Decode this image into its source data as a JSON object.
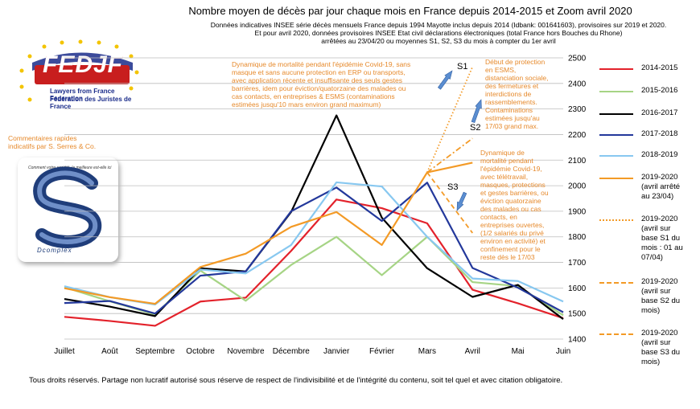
{
  "header": {
    "title": "Nombre moyen de décès par jour chaque mois en France depuis 2014-2015 et Zoom avril 2020",
    "subtitle": "Données indicatives INSEE série décès mensuels France depuis 1994 Mayotte inclus depuis 2014 (Idbank: 001641603), provisoires sur 2019 et 2020.\nEt pour avril 2020,  données provisoires INSEE Etat civil déclarations électroniques (total France hors Bouches du Rhone)\narrêtées au 23/04/20 ou moyennes S1, S2, S3 du mois à compter du 1er avril"
  },
  "logo": {
    "name": "FEDJF",
    "line1": "Lawyers from France Federation",
    "line2": "Fédération des Juristes de France",
    "brand_color": "#c81e1e",
    "star_color": "#f3c400"
  },
  "comment_left": "Commentaires rapides\nindicatifs par S. Serres & Co.",
  "dcomplex": {
    "label": "Dcomplex",
    "tagline": "Comment votre société, la meilleure est-elle ici"
  },
  "notes": {
    "n1": "Dynamique de mortalité pendant l'épidémie Covid-19, sans\nmasque et sans aucune protection en ERP ou transports,\navec application récente et insuffisante des seuls gestes\nbarrières, idem pour éviction/quatorzaine des malades ou\ncas contacts, en entreprises & ESMS (contaminations\nestimées jusqu'10 mars environ grand maximum)",
    "n2": "Début de protection\nen ESMS,\ndistanciation sociale,\ndes fermetures et\ninterdictions de\nrassemblements.\nContaminations\nestimées jusqu'au\n17/03 grand max.",
    "n3": "Dynamique de\nmortalité pendant\nl'épidémie Covid-19,\navec télétravail,\nmasques, protections\net gestes barrières, ou\néviction quatorzaine\ndes malades ou cas\ncontacts, en\nentreprises ouvertes,\n(1/2 salariés du privé\nenviron en activité) et\nconfinement pour le\nreste dès le 17/03",
    "s1": "S1",
    "s2": "S2",
    "s3": "S3"
  },
  "footer": "Tous droits réservés. Partage non lucratif autorisé sous réserve de respect de l'indivisibilité et de l'intégrité du contenu, soit tel quel et avec citation obligatoire.",
  "chart_data": {
    "type": "line",
    "categories": [
      "Juillet",
      "Août",
      "Septembre",
      "Octobre",
      "Novembre",
      "Décembre",
      "Janvier",
      "Février",
      "Mars",
      "Avril",
      "Mai",
      "Juin"
    ],
    "ylim": [
      1400,
      2500
    ],
    "yticks": [
      1400,
      1500,
      1600,
      1700,
      1800,
      1900,
      2000,
      2100,
      2200,
      2300,
      2400,
      2500
    ],
    "y_axis_side": "right",
    "grid": true,
    "legend_position": "right",
    "series": [
      {
        "name": "2014-2015",
        "color": "#e3222b",
        "style": "solid",
        "values": [
          1487,
          1471,
          1452,
          1547,
          1562,
          1745,
          1946,
          1912,
          1853,
          1593,
          1540,
          1482
        ]
      },
      {
        "name": "2015-2016",
        "color": "#a6d485",
        "style": "solid",
        "values": [
          1603,
          1548,
          1496,
          1668,
          1550,
          1690,
          1800,
          1650,
          1800,
          1623,
          1607,
          1493
        ]
      },
      {
        "name": "2016-2017",
        "color": "#000000",
        "style": "solid",
        "values": [
          1557,
          1527,
          1490,
          1677,
          1665,
          1897,
          2275,
          1875,
          1677,
          1565,
          1612,
          1478
        ]
      },
      {
        "name": "2017-2018",
        "color": "#23389b",
        "style": "solid",
        "values": [
          1541,
          1549,
          1500,
          1648,
          1665,
          1900,
          1993,
          1862,
          2012,
          1678,
          1601,
          1505
        ]
      },
      {
        "name": "2018-2019",
        "color": "#88c8f0",
        "style": "solid",
        "values": [
          1607,
          1564,
          1535,
          1672,
          1657,
          1768,
          2013,
          1997,
          1800,
          1637,
          1627,
          1547
        ]
      },
      {
        "name": "2019-2020\n(avril arrêté\nau 23/04)",
        "color": "#f39a26",
        "style": "solid",
        "values": [
          1599,
          1564,
          1538,
          1682,
          1734,
          1839,
          1897,
          1768,
          2052,
          2090,
          null,
          null
        ]
      },
      {
        "name": "2019-2020\n(avril sur\nbase S1 du\nmois : 01 au\n07/04)",
        "color": "#f39a26",
        "style": "dotted",
        "values": [
          null,
          null,
          null,
          null,
          null,
          null,
          null,
          null,
          2052,
          2465,
          null,
          null
        ]
      },
      {
        "name": "2019-2020\n(avril sur\nbase S2 du\nmois)",
        "color": "#f39a26",
        "style": "dashdot",
        "values": [
          null,
          null,
          null,
          null,
          null,
          null,
          null,
          null,
          2052,
          2185,
          null,
          null
        ]
      },
      {
        "name": "2019-2020\n(avril sur\nbase S3 du\nmois)",
        "color": "#f39a26",
        "style": "dashed",
        "values": [
          null,
          null,
          null,
          null,
          null,
          null,
          null,
          null,
          2052,
          1815,
          null,
          null
        ]
      }
    ]
  }
}
